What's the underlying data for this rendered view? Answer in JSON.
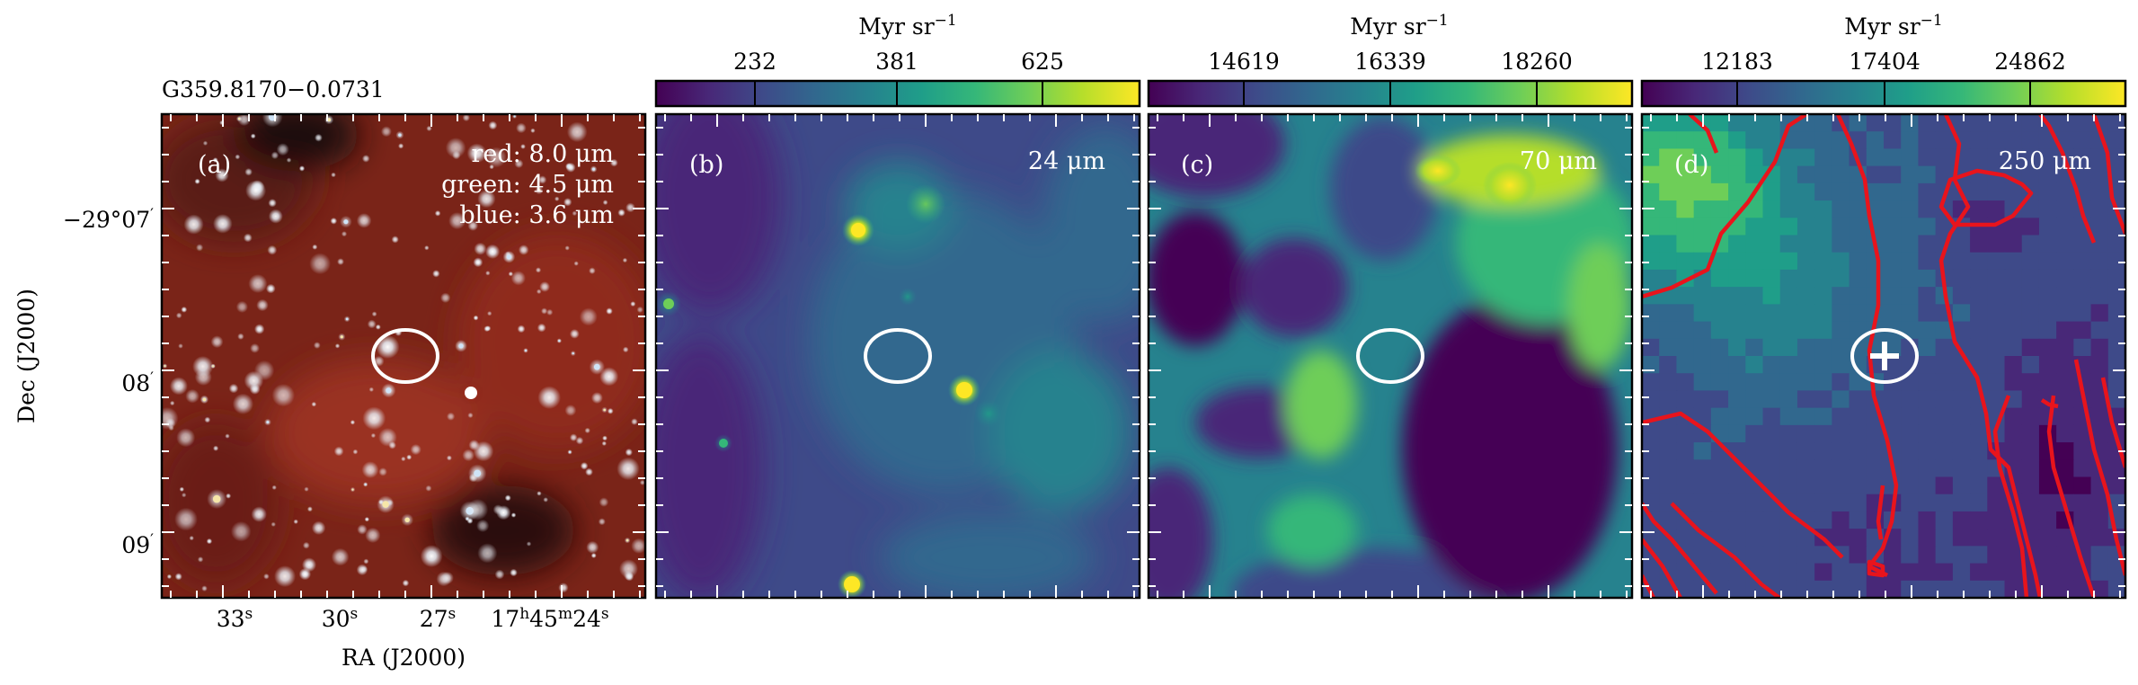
{
  "source_title": "G359.8170−0.0731",
  "axes": {
    "ylabel": "Dec (J2000)",
    "xlabel": "RA (J2000)",
    "dec_ticks": [
      {
        "base": "−29°07",
        "sup": "′"
      },
      {
        "base": "08",
        "sup": "′"
      },
      {
        "base": "09",
        "sup": "′"
      }
    ],
    "ra_ticks": [
      {
        "parts": [
          {
            "t": "33",
            "s": false
          },
          {
            "t": "s",
            "s": true
          }
        ]
      },
      {
        "parts": [
          {
            "t": "30",
            "s": false
          },
          {
            "t": "s",
            "s": true
          }
        ]
      },
      {
        "parts": [
          {
            "t": "27",
            "s": false
          },
          {
            "t": "s",
            "s": true
          }
        ]
      },
      {
        "parts": [
          {
            "t": "17",
            "s": false
          },
          {
            "t": "h",
            "s": true
          },
          {
            "t": "45",
            "s": false
          },
          {
            "t": "m",
            "s": true
          },
          {
            "t": "24",
            "s": false
          },
          {
            "t": "s",
            "s": true
          }
        ]
      }
    ]
  },
  "panels": [
    {
      "id": "a",
      "label": "(a)",
      "legend": [
        "red: 8.0 μm",
        "green: 4.5 μm",
        "blue: 3.6 μm"
      ],
      "colorbar": null
    },
    {
      "id": "b",
      "label": "(b)",
      "band": "24 μm",
      "colorbar": {
        "unit": "Myr sr",
        "unit_sup": "−1",
        "ticks": [
          "232",
          "381",
          "625"
        ]
      }
    },
    {
      "id": "c",
      "label": "(c)",
      "band": "70 μm",
      "colorbar": {
        "unit": "Myr sr",
        "unit_sup": "−1",
        "ticks": [
          "14619",
          "16339",
          "18260"
        ]
      }
    },
    {
      "id": "d",
      "label": "(d)",
      "band": "250 μm",
      "colorbar": {
        "unit": "Myr sr",
        "unit_sup": "−1",
        "ticks": [
          "12183",
          "17404",
          "24862"
        ]
      }
    }
  ],
  "colors": {
    "viridis": [
      "#440154",
      "#482878",
      "#3e4a89",
      "#31688e",
      "#26828e",
      "#1f9e89",
      "#35b779",
      "#6ece58",
      "#b5de2b",
      "#fde725"
    ],
    "contour": "#e8141c",
    "marker": "#ffffff"
  }
}
